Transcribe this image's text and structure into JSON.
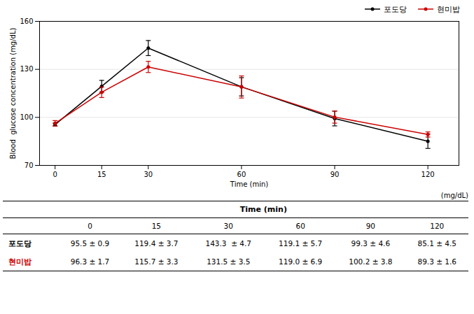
{
  "chart_data": {
    "type": "line",
    "x": [
      0,
      15,
      30,
      60,
      90,
      120
    ],
    "series": [
      {
        "name": "포도당",
        "color": "#000000",
        "marker": "circle",
        "line_style": "solid",
        "values": [
          95.5,
          119.4,
          143.3,
          119.1,
          99.3,
          85.1
        ],
        "errors": [
          0.9,
          3.7,
          4.7,
          5.7,
          4.6,
          4.5
        ]
      },
      {
        "name": "현미밥",
        "color": "#cc0000",
        "marker": "circle",
        "line_style": "solid",
        "values": [
          96.3,
          115.7,
          131.5,
          119.0,
          100.2,
          89.3
        ],
        "errors": [
          1.7,
          3.3,
          3.5,
          6.9,
          3.8,
          1.6
        ]
      }
    ],
    "xlabel": "Time (min)",
    "ylabel": "Blood  glucose concentration (mg/dL)",
    "xlim": [
      -5,
      130
    ],
    "ylim": [
      70,
      160
    ],
    "xticks": [
      0,
      15,
      30,
      60,
      90,
      120
    ],
    "yticks": [
      70,
      100,
      130,
      160
    ],
    "grid": true,
    "legend": "upper right",
    "table": {
      "unit_label": "(mg/dL)",
      "header": "Time (min)",
      "columns": [
        "0",
        "15",
        "30",
        "60",
        "90",
        "120"
      ],
      "rows": [
        {
          "label": "포도당",
          "color": "#000000",
          "cells": [
            "95.5 ± 0.9",
            "119.4 ± 3.7",
            "143.3  ± 4.7",
            "119.1 ± 5.7",
            "99.3 ± 4.6",
            "85.1 ± 4.5"
          ]
        },
        {
          "label": "현미밥",
          "color": "#cc0000",
          "cells": [
            "96.3 ± 1.7",
            "115.7 ± 3.3",
            "131.5 ± 3.5",
            "119.0 ± 6.9",
            "100.2 ± 3.8",
            "89.3 ± 1.6"
          ]
        }
      ]
    }
  }
}
